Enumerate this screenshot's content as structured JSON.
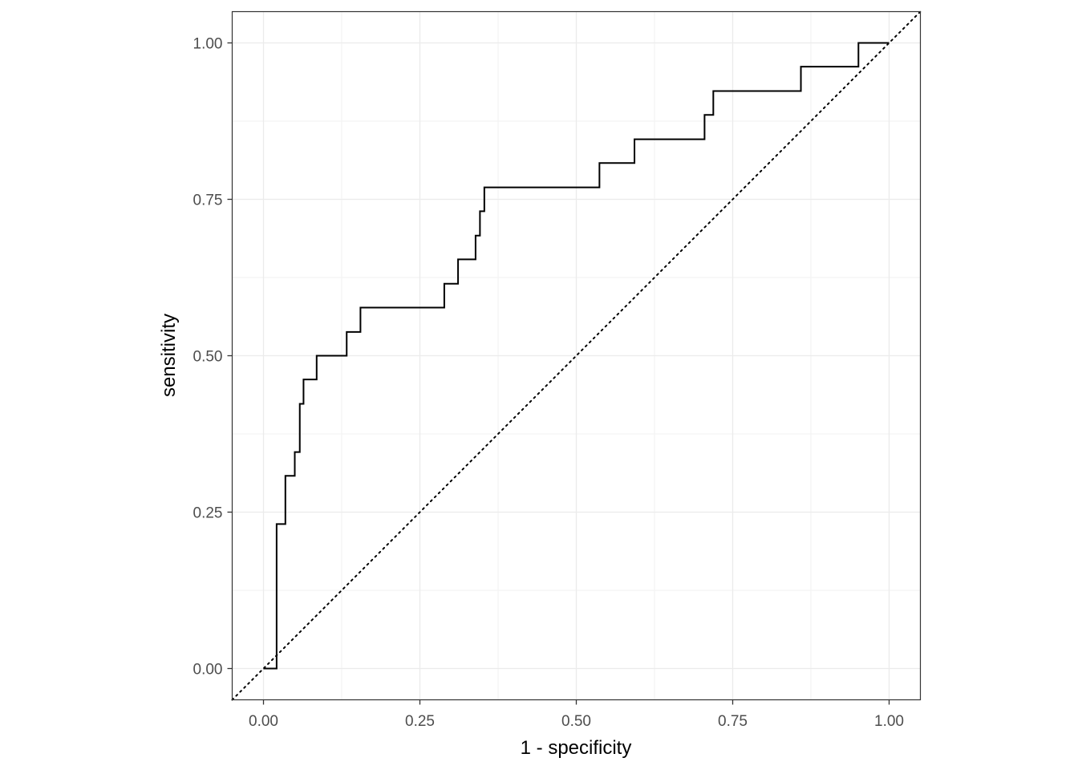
{
  "chart_data": {
    "type": "line",
    "title": "",
    "xlabel": "1 - specificity",
    "ylabel": "sensitivity",
    "xlim": [
      0,
      1
    ],
    "ylim": [
      0,
      1
    ],
    "x_ticks": [
      0,
      0.25,
      0.5,
      0.75,
      1
    ],
    "x_tick_labels": [
      "0.00",
      "0.25",
      "0.50",
      "0.75",
      "1.00"
    ],
    "y_ticks": [
      0,
      0.25,
      0.5,
      0.75,
      1
    ],
    "y_tick_labels": [
      "0.00",
      "0.25",
      "0.50",
      "0.75",
      "1.00"
    ],
    "grid": true,
    "series": [
      {
        "kind": "step",
        "x": [
          0,
          0.021,
          0.021,
          0.035,
          0.035,
          0.05,
          0.05,
          0.058,
          0.058,
          0.064,
          0.064,
          0.085,
          0.085,
          0.133,
          0.133,
          0.155,
          0.155,
          0.289,
          0.289,
          0.311,
          0.311,
          0.339,
          0.339,
          0.346,
          0.346,
          0.353,
          0.353,
          0.537,
          0.537,
          0.593,
          0.593,
          0.705,
          0.705,
          0.719,
          0.719,
          0.859,
          0.859,
          0.951,
          0.951,
          1.0
        ],
        "y": [
          0,
          0,
          0.231,
          0.231,
          0.308,
          0.308,
          0.346,
          0.346,
          0.423,
          0.423,
          0.462,
          0.462,
          0.5,
          0.5,
          0.538,
          0.538,
          0.577,
          0.577,
          0.615,
          0.615,
          0.654,
          0.654,
          0.692,
          0.692,
          0.731,
          0.731,
          0.769,
          0.769,
          0.808,
          0.808,
          0.846,
          0.846,
          0.885,
          0.885,
          0.923,
          0.923,
          0.962,
          0.962,
          1.0,
          1.0
        ],
        "color": "#000000"
      },
      {
        "kind": "reference-diagonal",
        "x": [
          0,
          1
        ],
        "y": [
          0,
          1
        ],
        "style": "dotted",
        "color": "#000000"
      }
    ]
  }
}
